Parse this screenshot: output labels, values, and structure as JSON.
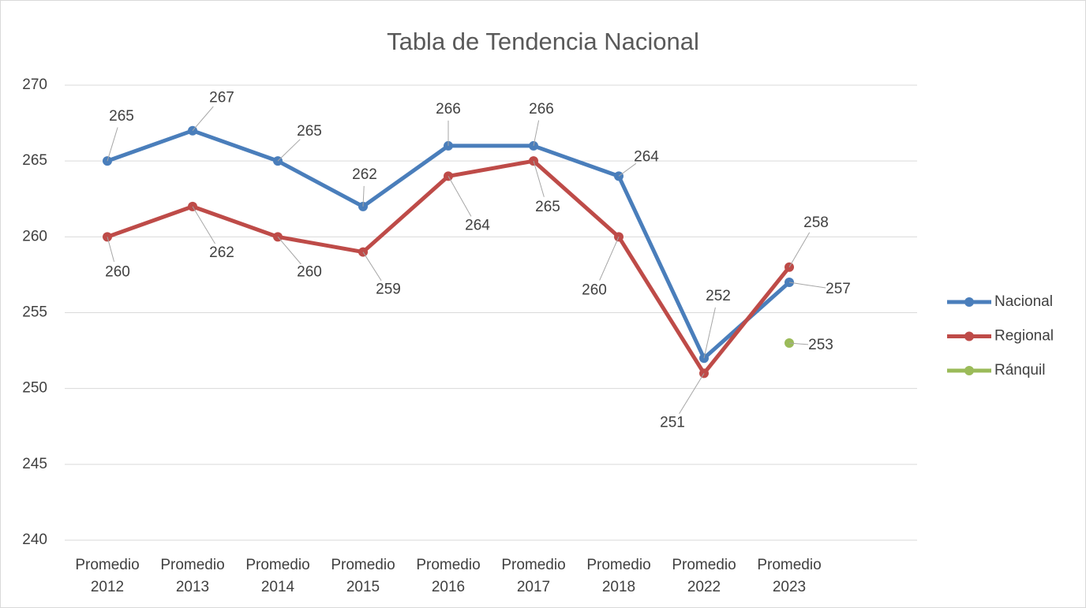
{
  "chart_data": {
    "type": "line",
    "title": "Tabla de Tendencia Nacional",
    "categories": [
      "Promedio 2012",
      "Promedio 2013",
      "Promedio 2014",
      "Promedio 2015",
      "Promedio 2016",
      "Promedio 2017",
      "Promedio 2018",
      "Promedio 2022",
      "Promedio 2023",
      null
    ],
    "series": [
      {
        "name": "Nacional",
        "color": "#4a7ebb",
        "values": [
          265,
          267,
          265,
          262,
          266,
          266,
          264,
          252,
          257,
          null
        ]
      },
      {
        "name": "Regional",
        "color": "#be4b48",
        "values": [
          260,
          262,
          260,
          259,
          264,
          265,
          260,
          251,
          258,
          null
        ]
      },
      {
        "name": "Ránquil",
        "color": "#9bbb59",
        "values": [
          null,
          null,
          null,
          null,
          null,
          null,
          null,
          null,
          253,
          null
        ]
      }
    ],
    "ylim": [
      240,
      270
    ],
    "yticks": [
      240,
      245,
      250,
      255,
      260,
      265,
      270
    ],
    "grid": true,
    "legend": "right"
  }
}
